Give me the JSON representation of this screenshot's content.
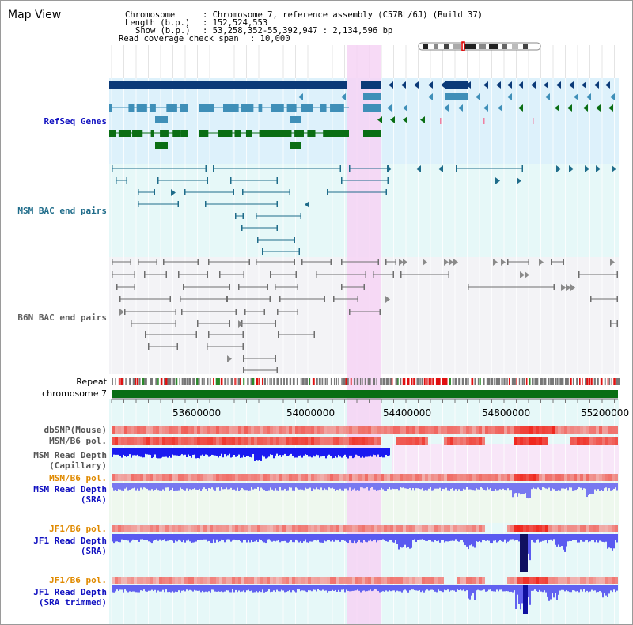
{
  "app": {
    "title": "Map View"
  },
  "info": {
    "chromosome_label": "Chromosome",
    "chromosome_value": ": Chromosome 7, reference assembly (C57BL/6J) (Build 37)",
    "length_label": "Length (b.p.)",
    "length_value": ": 152,524,553",
    "show_label": "Show (b.p.)",
    "show_value": ": 53,258,352-55,392,947 : 2,134,596 bp",
    "coverage_label": "Read coverage check span",
    "coverage_value": ": 10,000"
  },
  "tracks": {
    "refseq": "RefSeq Genes",
    "msm_bac": "MSM BAC end pairs",
    "b6n_bac": "B6N BAC end pairs",
    "repeat": "Repeat",
    "chromosome": "chromosome 7",
    "dbsnp": "dbSNP(Mouse)",
    "msm_b6_pol_1": "MSM/B6 pol.",
    "msm_depth_cap_1": "MSM Read Depth",
    "msm_depth_cap_2": "(Capillary)",
    "msm_b6_pol_2": "MSM/B6 pol.",
    "msm_depth_sra_1": "MSM Read Depth",
    "msm_depth_sra_2": "(SRA)",
    "jf1_pol_1": "JF1/B6 pol.",
    "jf1_depth_1": "JF1 Read Depth",
    "jf1_depth_2": "(SRA)",
    "jf1_pol_2": "JF1/B6 pol.",
    "jf1_trim_1": "JF1 Read Depth",
    "jf1_trim_2": "(SRA trimmed)"
  },
  "axis": {
    "ticks": [
      "53600000",
      "54000000",
      "54400000",
      "54800000",
      "55200000"
    ]
  },
  "colors": {
    "refseq_dark": "#0b3a78",
    "refseq_mid": "#3f8fb8",
    "refseq_green": "#0a6e14",
    "msm_bac": "#1f6c8a",
    "b6n_bac": "#6e6e6e",
    "highlight": "#f5d3f3",
    "depth_blue": "#3030f0",
    "pol_red": "#ee2020",
    "label_blue": "#1010c0",
    "label_orange": "#e08a00"
  },
  "icons": {
    "ideogram": "chromosome-ideogram"
  }
}
